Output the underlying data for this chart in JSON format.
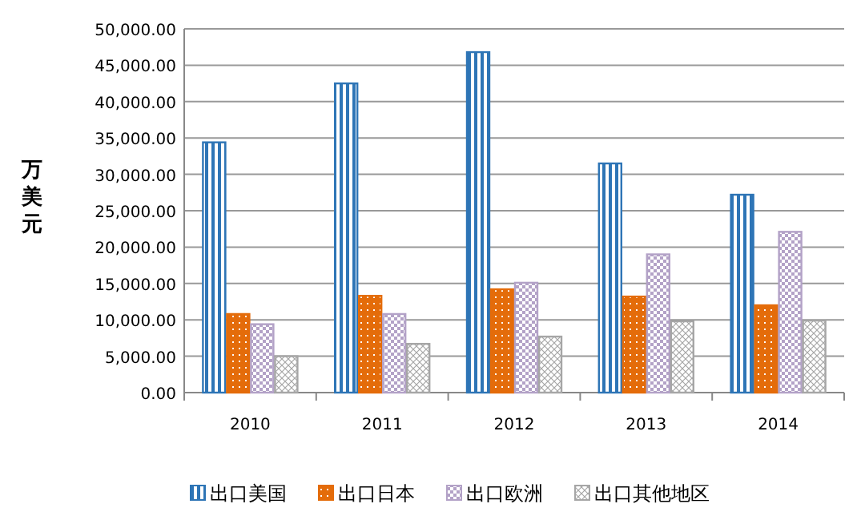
{
  "chart_data": {
    "type": "bar",
    "ylabel": "万美元",
    "categories": [
      "2010",
      "2011",
      "2012",
      "2013",
      "2014"
    ],
    "series": [
      {
        "name": "出口美国",
        "color": "#2e75b6",
        "values": [
          34400,
          42500,
          46800,
          31500,
          27200
        ]
      },
      {
        "name": "出口日本",
        "color": "#e46c0a",
        "values": [
          10800,
          13300,
          14200,
          13200,
          12000
        ]
      },
      {
        "name": "出口欧洲",
        "color": "#b3a2c7",
        "values": [
          9400,
          10800,
          15100,
          19000,
          22100
        ]
      },
      {
        "name": "出口其他地区",
        "color": "#a6a6a6",
        "values": [
          5000,
          6700,
          7700,
          9800,
          9900
        ]
      }
    ],
    "ylim": [
      0,
      50000
    ],
    "yticks": [
      {
        "value": 0,
        "label": "0.00"
      },
      {
        "value": 5000,
        "label": "5,000.00"
      },
      {
        "value": 10000,
        "label": "10,000.00"
      },
      {
        "value": 15000,
        "label": "15,000.00"
      },
      {
        "value": 20000,
        "label": "20,000.00"
      },
      {
        "value": 25000,
        "label": "25,000.00"
      },
      {
        "value": 30000,
        "label": "30,000.00"
      },
      {
        "value": 35000,
        "label": "35,000.00"
      },
      {
        "value": 40000,
        "label": "40,000.00"
      },
      {
        "value": 45000,
        "label": "45,000.00"
      },
      {
        "value": 50000,
        "label": "50,000.00"
      }
    ],
    "grid": "y",
    "legend": "bottom"
  }
}
